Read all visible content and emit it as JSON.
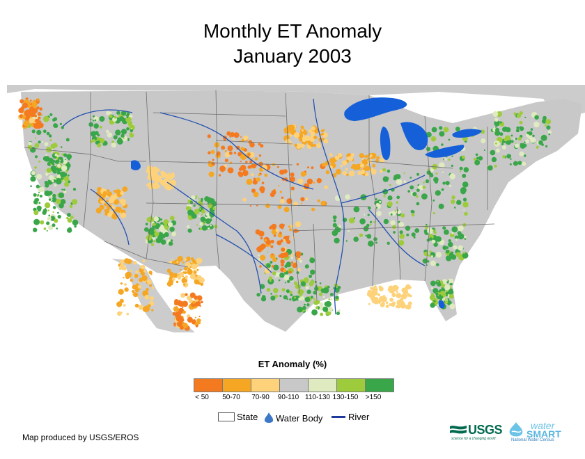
{
  "title": {
    "line1": "Monthly ET Anomaly",
    "line2": "January 2003"
  },
  "map": {
    "region": "conterminous-united-states",
    "base_color": "#c8c8c8",
    "water_color": "#1560d8",
    "river_color": "#2451b0",
    "state_line_color": "#6e6e6e"
  },
  "legend": {
    "title": "ET Anomaly (%)",
    "classes": [
      {
        "label": "< 50",
        "color": "#f47a20"
      },
      {
        "label": "50-70",
        "color": "#f5a623"
      },
      {
        "label": "70-90",
        "color": "#fdd27a"
      },
      {
        "label": "90-110",
        "color": "#c8c8c8"
      },
      {
        "label": "110-130",
        "color": "#dfeac0"
      },
      {
        "label": "130-150",
        "color": "#9dcb3c"
      },
      {
        "label": ">150",
        "color": "#3aa64a"
      }
    ],
    "key": {
      "state": "State",
      "water": "Water Body",
      "river": "River"
    }
  },
  "credit": "Map produced by USGS/EROS",
  "logos": {
    "usgs": {
      "word": "USGS",
      "tagline": "science for a changing world",
      "color": "#006a4e"
    },
    "watersmart": {
      "word1": "water",
      "word2": "SMART",
      "subtitle": "National Water Census",
      "color": "#5bb6e0"
    }
  }
}
